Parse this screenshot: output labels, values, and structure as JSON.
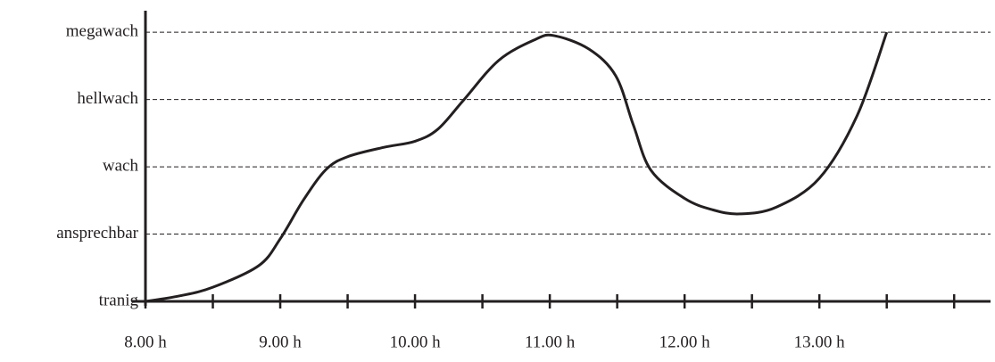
{
  "chart_data": {
    "type": "line",
    "x": [
      8,
      8.25,
      8.5,
      8.84,
      9,
      9.17,
      9.34,
      9.5,
      9.77,
      10,
      10.17,
      10.36,
      10.62,
      10.89,
      11.03,
      11.29,
      11.49,
      11.62,
      11.75,
      12,
      12.21,
      12.41,
      12.68,
      13,
      13.28,
      13.5
    ],
    "values": [
      0,
      0.08,
      0.21,
      0.53,
      0.93,
      1.5,
      1.96,
      2.15,
      2.29,
      2.38,
      2.56,
      2.99,
      3.58,
      3.89,
      3.95,
      3.75,
      3.35,
      2.62,
      1.95,
      1.53,
      1.36,
      1.3,
      1.4,
      1.83,
      2.76,
      4.0
    ],
    "color": "#231f20",
    "xlim": [
      8,
      14.27
    ],
    "xticks": [
      {
        "value": 8,
        "label": "8.00 h"
      },
      {
        "value": 9,
        "label": "9.00 h"
      },
      {
        "value": 10,
        "label": "10.00 h"
      },
      {
        "value": 11,
        "label": "11.00 h"
      },
      {
        "value": 12,
        "label": "12.00 h"
      },
      {
        "value": 13,
        "label": "13.00 h"
      }
    ],
    "xminorticks": [
      8.5,
      9.5,
      10.5,
      11.5,
      12.5,
      13.5,
      14
    ],
    "ylim": [
      0,
      4.32
    ],
    "yticks": [
      {
        "value": 0,
        "label": "tranig"
      },
      {
        "value": 1,
        "label": "ansprechbar"
      },
      {
        "value": 2,
        "label": "wach"
      },
      {
        "value": 3,
        "label": "hellwach"
      },
      {
        "value": 4,
        "label": "megawach"
      }
    ],
    "grid": true
  }
}
